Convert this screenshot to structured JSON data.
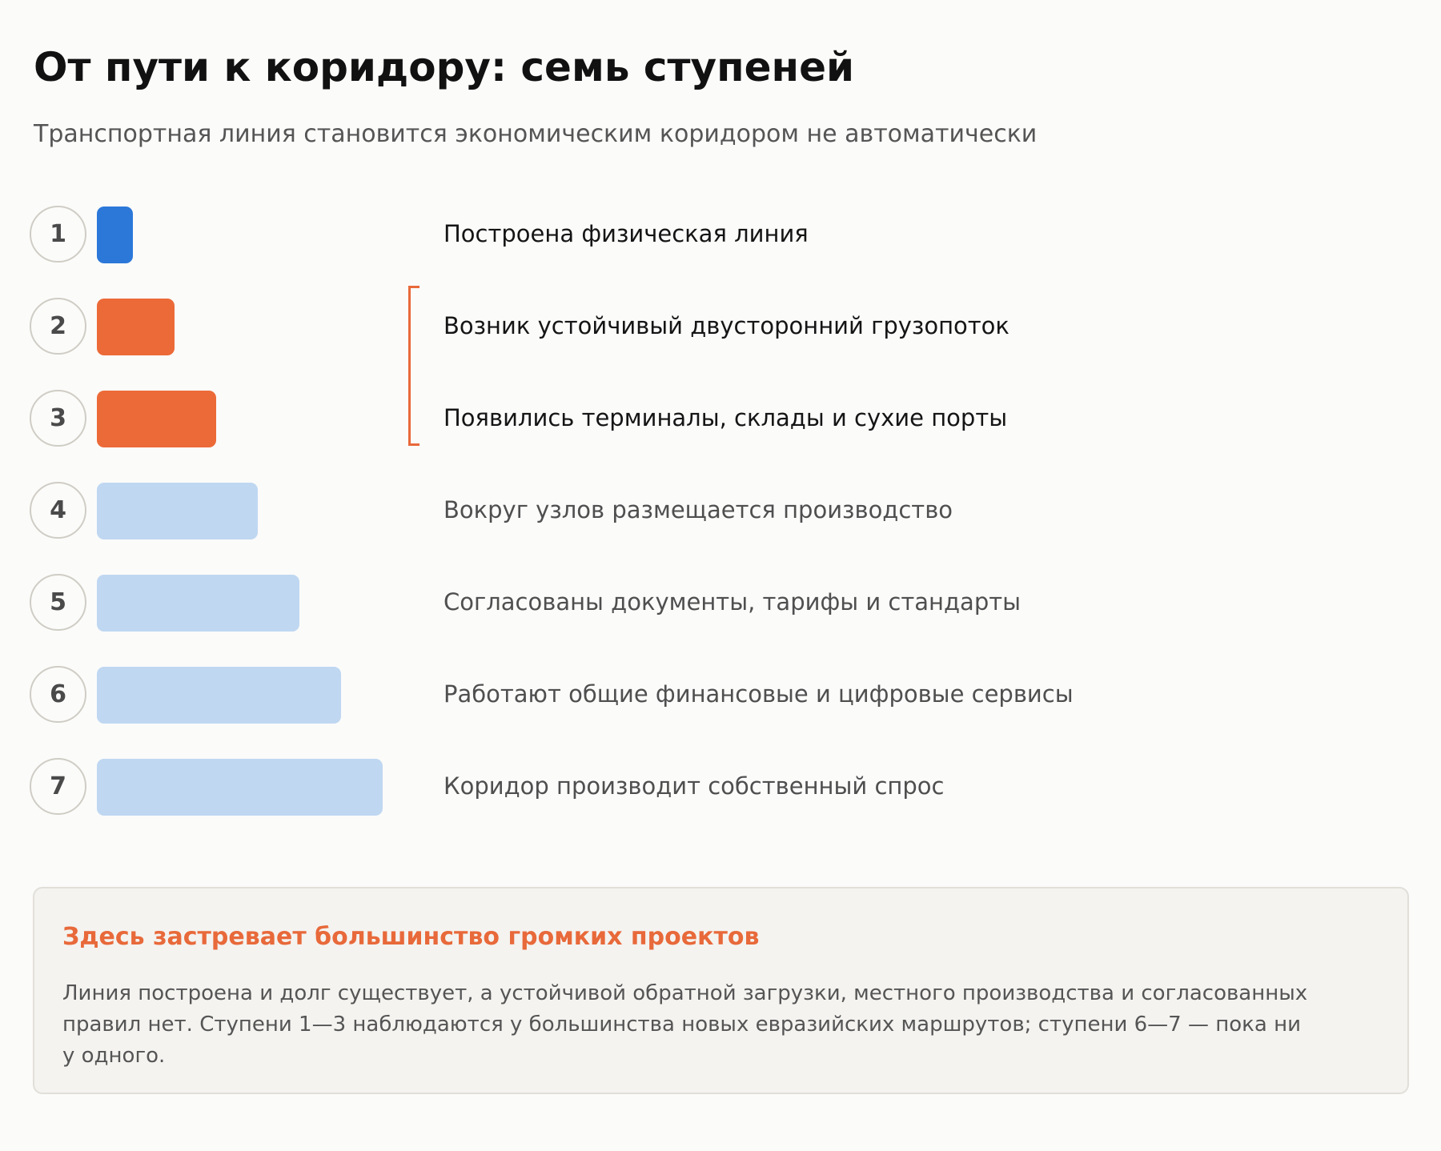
{
  "title": "От пути к коридору: семь ступеней",
  "subtitle": "Транспортная линия становится экономическим коридором не автоматически",
  "colors": {
    "achieved": "#2b78d9",
    "stuck": "#ec6a38",
    "pending": "#bfd7f1",
    "accent": "#e8693a",
    "label_dark": "#151515",
    "label_muted": "#4f4f4f"
  },
  "steps": [
    {
      "num": "1",
      "label": "Построена физическая линия",
      "status": "achieved"
    },
    {
      "num": "2",
      "label": "Возник устойчивый двусторонний грузопоток",
      "status": "stuck"
    },
    {
      "num": "3",
      "label": "Появились терминалы, склады и сухие порты",
      "status": "stuck"
    },
    {
      "num": "4",
      "label": "Вокруг узлов размещается производство",
      "status": "pending"
    },
    {
      "num": "5",
      "label": "Согласованы документы, тарифы и стандарты",
      "status": "pending"
    },
    {
      "num": "6",
      "label": "Работают общие финансовые и цифровые сервисы",
      "status": "pending"
    },
    {
      "num": "7",
      "label": "Коридор производит собственный спрос",
      "status": "pending"
    }
  ],
  "bracket": {
    "from_step": 2,
    "to_step": 3
  },
  "note": {
    "title": "Здесь застревает большинство громких проектов",
    "body": "Линия построена и долг существует, а устойчивой обратной загрузки, местного производства и согласованных правил нет. Ступени 1—3 наблюдаются у большинства новых евразийских маршрутов; ступени 6—7 — пока ни у одного."
  }
}
